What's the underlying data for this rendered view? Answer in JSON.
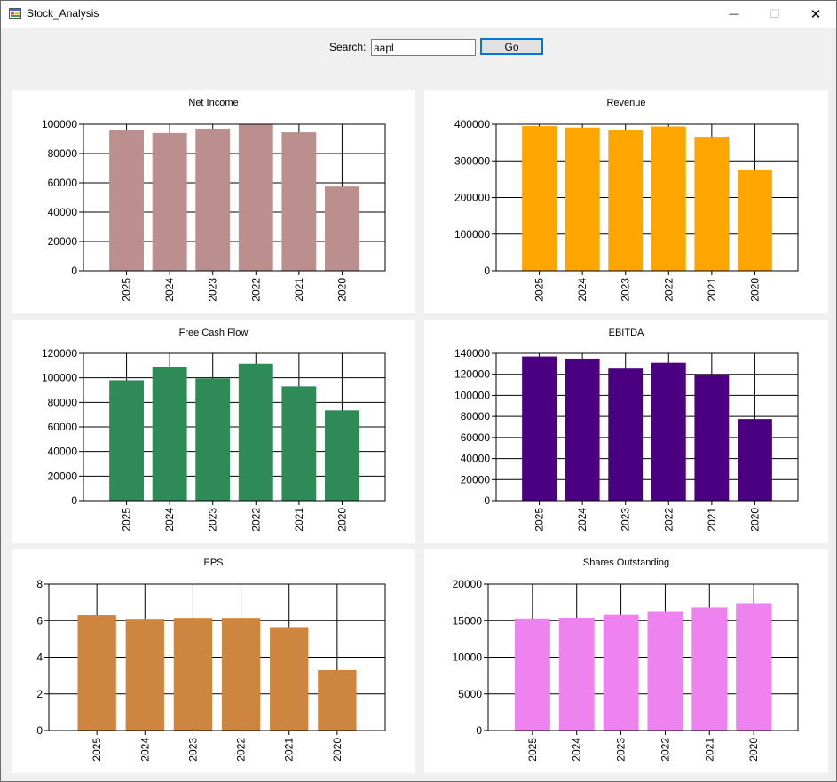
{
  "window": {
    "title": "Stock_Analysis",
    "minimize_glyph": "—",
    "maximize_glyph": "☐",
    "close_glyph": "✕",
    "icon": "app-window-icon"
  },
  "search": {
    "label": "Search:",
    "value": "aapl",
    "go_label": "Go"
  },
  "chart_data": [
    {
      "type": "bar",
      "title": "Net Income",
      "categories": [
        "2025",
        "2024",
        "2023",
        "2022",
        "2021",
        "2020"
      ],
      "values": [
        96000,
        94000,
        97000,
        100000,
        94500,
        57500
      ],
      "ylim": [
        0,
        100000
      ],
      "yticks": [
        0,
        20000,
        40000,
        60000,
        80000,
        100000
      ],
      "color": "#bc8f8f",
      "grid": true
    },
    {
      "type": "bar",
      "title": "Revenue",
      "categories": [
        "2025",
        "2024",
        "2023",
        "2022",
        "2021",
        "2020"
      ],
      "values": [
        395000,
        391000,
        383000,
        394000,
        366000,
        274500
      ],
      "ylim": [
        0,
        400000
      ],
      "yticks": [
        0,
        100000,
        200000,
        300000,
        400000
      ],
      "color": "#ffa500",
      "grid": true
    },
    {
      "type": "bar",
      "title": "Free Cash Flow",
      "categories": [
        "2025",
        "2024",
        "2023",
        "2022",
        "2021",
        "2020"
      ],
      "values": [
        98000,
        109000,
        99500,
        111500,
        93000,
        73500
      ],
      "ylim": [
        0,
        120000
      ],
      "yticks": [
        0,
        20000,
        40000,
        60000,
        80000,
        100000,
        120000
      ],
      "color": "#2e8b57",
      "grid": true
    },
    {
      "type": "bar",
      "title": "EBITDA",
      "categories": [
        "2025",
        "2024",
        "2023",
        "2022",
        "2021",
        "2020"
      ],
      "values": [
        137000,
        135000,
        125500,
        131000,
        120000,
        77500
      ],
      "ylim": [
        0,
        140000
      ],
      "yticks": [
        0,
        20000,
        40000,
        60000,
        80000,
        100000,
        120000,
        140000
      ],
      "color": "#4b0082",
      "grid": true
    },
    {
      "type": "bar",
      "title": "EPS",
      "categories": [
        "2025",
        "2024",
        "2023",
        "2022",
        "2021",
        "2020"
      ],
      "values": [
        6.3,
        6.1,
        6.15,
        6.15,
        5.65,
        3.3
      ],
      "ylim": [
        0,
        8
      ],
      "yticks": [
        0,
        2,
        4,
        6,
        8
      ],
      "color": "#cd853f",
      "grid": true
    },
    {
      "type": "bar",
      "title": "Shares Outstanding",
      "categories": [
        "2025",
        "2024",
        "2023",
        "2022",
        "2021",
        "2020"
      ],
      "values": [
        15300,
        15400,
        15800,
        16300,
        16800,
        17400
      ],
      "ylim": [
        0,
        20000
      ],
      "yticks": [
        0,
        5000,
        10000,
        15000,
        20000
      ],
      "color": "#ee82ee",
      "grid": true
    }
  ]
}
